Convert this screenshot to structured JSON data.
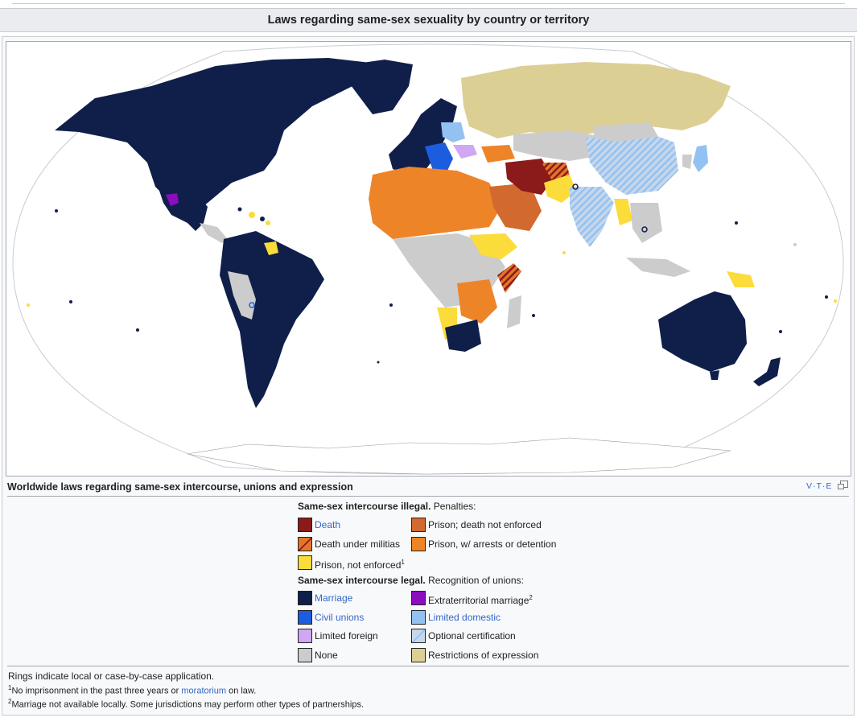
{
  "header": {
    "title": "Laws regarding same-sex sexuality by country or territory"
  },
  "map": {
    "kind": "world choropleth",
    "projection": "Winkel tripel / Robinson-like"
  },
  "caption": {
    "text": "Worldwide laws regarding same-sex intercourse, unions and expression"
  },
  "navbox": {
    "vte": "V·T·E"
  },
  "legend": {
    "illegal_heading_bold": "Same-sex intercourse illegal.",
    "illegal_heading_rest": " Penalties:",
    "illegal_items": [
      {
        "label": "Death",
        "color": "#8b1a1a",
        "link": true
      },
      {
        "label": "Prison; death not enforced",
        "color": "#d2692f",
        "link": false
      },
      {
        "label": "Death under militias",
        "color": "#e2762a",
        "hatch": "#8b1a1a",
        "link": false
      },
      {
        "label": "Prison, w/ arrests or detention",
        "color": "#ee8428",
        "link": false
      },
      {
        "label": "Prison, not enforced",
        "sup": "1",
        "color": "#fbdc3a",
        "link": false
      }
    ],
    "legal_heading_bold": "Same-sex intercourse legal.",
    "legal_heading_rest": " Recognition of unions:",
    "legal_items": [
      {
        "label": "Marriage",
        "color": "#0f1f4a",
        "link": true
      },
      {
        "label": "Extraterritorial marriage",
        "sup": "2",
        "color": "#8b0dbf",
        "link": false
      },
      {
        "label": "Civil unions",
        "color": "#1c5de0",
        "link": true
      },
      {
        "label": "Limited domestic",
        "color": "#93c2f2",
        "link": true
      },
      {
        "label": "Limited foreign",
        "color": "#cfa7f2",
        "link": false
      },
      {
        "label": "Optional certification",
        "color": "#c7d7ea",
        "hatch": "#93c2f2",
        "link": false
      },
      {
        "label": "None",
        "color": "#cccccc",
        "link": false
      },
      {
        "label": "Restrictions of expression",
        "color": "#dccf94",
        "link": false
      }
    ]
  },
  "notes": {
    "rings": "Rings indicate local or case-by-case application.",
    "n1_sup": "1",
    "n1_a": "No imprisonment in the past three years or ",
    "n1_link": "moratorium",
    "n1_b": " on law.",
    "n2_sup": "2",
    "n2": "Marriage not available locally. Some jurisdictions may perform other types of partnerships."
  },
  "colors": {
    "marriage": "#0f1f4a",
    "civil": "#1c5de0",
    "limited_domestic": "#93c2f2",
    "limited_foreign": "#cfa7f2",
    "none": "#cccccc",
    "restrict": "#dccf94",
    "death": "#8b1a1a",
    "prison_death": "#d2692f",
    "prison_arrest": "#ee8428",
    "prison_ne": "#fbdc3a",
    "extra": "#8b0dbf"
  }
}
